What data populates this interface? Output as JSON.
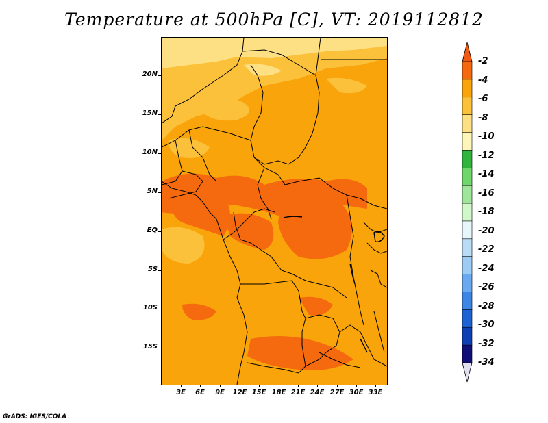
{
  "title": "Temperature at 500hPa [C], VT: 2019112812",
  "credit": "GrADS: IGES/COLA",
  "map": {
    "lat_labels": [
      "20N",
      "15N",
      "10N",
      "5N",
      "EQ",
      "5S",
      "10S",
      "15S"
    ],
    "lon_labels": [
      "3E",
      "6E",
      "9E",
      "12E",
      "15E",
      "18E",
      "21E",
      "24E",
      "27E",
      "30E",
      "33E"
    ],
    "region_colors": {
      "minus2_to_minus4": "#f56a0f",
      "minus4_to_minus6": "#f8a40a",
      "minus6_to_minus8": "#fbc13a",
      "minus8_to_minus10": "#fde084"
    }
  },
  "colorbar": {
    "levels": [
      "-2",
      "-4",
      "-6",
      "-8",
      "-10",
      "-12",
      "-14",
      "-16",
      "-18",
      "-20",
      "-22",
      "-24",
      "-26",
      "-28",
      "-30",
      "-32",
      "-34"
    ],
    "colors": [
      "#f05a15",
      "#f56a0f",
      "#f8a40a",
      "#fbc13a",
      "#fde084",
      "#fef6b8",
      "#31b53d",
      "#6fd66b",
      "#9fe69a",
      "#cff7c8",
      "#e6f7fb",
      "#b9dcf6",
      "#9ccbf4",
      "#6aa9ef",
      "#3c87e6",
      "#1e63d4",
      "#0c40b3",
      "#0f0f78",
      "#e0e0f0"
    ]
  }
}
